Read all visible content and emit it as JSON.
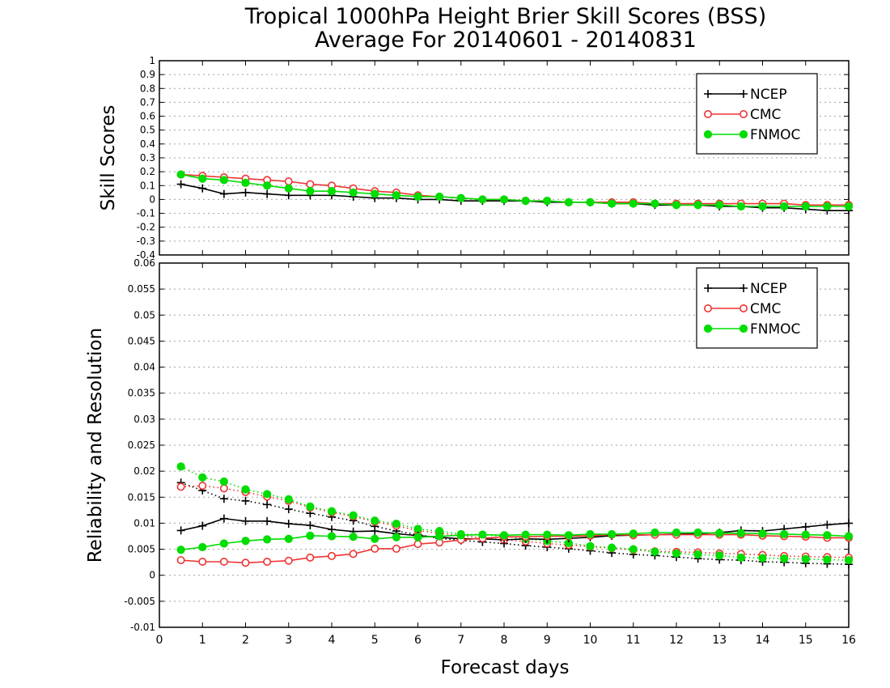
{
  "title_line1": "Tropical 1000hPa Height Brier Skill Scores (BSS)",
  "title_line2": "Average For 20140601 - 20140831",
  "xlabel": "Forecast days",
  "colors": {
    "NCEP": "#000000",
    "CMC": "#ee3333",
    "FNMOC": "#00dd00"
  },
  "chart_data": [
    {
      "type": "line",
      "ylabel": "Skill Scores",
      "xlim": [
        0,
        16
      ],
      "ylim": [
        -0.4,
        1
      ],
      "xticks": [
        "0",
        "1",
        "2",
        "3",
        "4",
        "5",
        "6",
        "7",
        "8",
        "9",
        "10",
        "11",
        "12",
        "13",
        "14",
        "15",
        "16"
      ],
      "yticks": [
        "-0.4",
        "-0.3",
        "-0.2",
        "-0.1",
        "0",
        "0.1",
        "0.2",
        "0.3",
        "0.4",
        "0.5",
        "0.6",
        "0.7",
        "0.8",
        "0.9",
        "1"
      ],
      "legend": [
        "NCEP",
        "CMC",
        "FNMOC"
      ],
      "legend_position": "top-right",
      "grid": true,
      "x": [
        0.5,
        1,
        1.5,
        2,
        2.5,
        3,
        3.5,
        4,
        4.5,
        5,
        5.5,
        6,
        6.5,
        7,
        7.5,
        8,
        8.5,
        9,
        9.5,
        10,
        10.5,
        11,
        11.5,
        12,
        12.5,
        13,
        13.5,
        14,
        14.5,
        15,
        15.5,
        16
      ],
      "series": [
        {
          "name": "NCEP",
          "marker": "plus",
          "style": "solid",
          "values": [
            0.11,
            0.08,
            0.04,
            0.05,
            0.04,
            0.03,
            0.03,
            0.03,
            0.02,
            0.01,
            0.01,
            0.0,
            0.0,
            -0.01,
            -0.01,
            -0.01,
            -0.01,
            -0.02,
            -0.02,
            -0.02,
            -0.03,
            -0.03,
            -0.04,
            -0.04,
            -0.04,
            -0.05,
            -0.05,
            -0.06,
            -0.06,
            -0.07,
            -0.08,
            -0.08
          ]
        },
        {
          "name": "CMC",
          "marker": "open-circle",
          "style": "solid",
          "values": [
            0.18,
            0.17,
            0.16,
            0.15,
            0.14,
            0.13,
            0.11,
            0.1,
            0.08,
            0.06,
            0.05,
            0.03,
            0.02,
            0.01,
            0.0,
            0.0,
            -0.01,
            -0.01,
            -0.02,
            -0.02,
            -0.02,
            -0.02,
            -0.03,
            -0.03,
            -0.03,
            -0.03,
            -0.03,
            -0.03,
            -0.03,
            -0.04,
            -0.04,
            -0.04
          ]
        },
        {
          "name": "FNMOC",
          "marker": "filled-circle",
          "style": "solid",
          "values": [
            0.18,
            0.15,
            0.14,
            0.12,
            0.1,
            0.08,
            0.06,
            0.06,
            0.05,
            0.04,
            0.03,
            0.02,
            0.02,
            0.01,
            0.0,
            0.0,
            -0.01,
            -0.01,
            -0.02,
            -0.02,
            -0.03,
            -0.03,
            -0.03,
            -0.04,
            -0.04,
            -0.04,
            -0.05,
            -0.05,
            -0.05,
            -0.05,
            -0.05,
            -0.05
          ]
        }
      ]
    },
    {
      "type": "line",
      "ylabel": "Reliability and Resolution",
      "xlabel": "Forecast days",
      "xlim": [
        0,
        16
      ],
      "ylim": [
        -0.01,
        0.06
      ],
      "xticks": [
        "0",
        "1",
        "2",
        "3",
        "4",
        "5",
        "6",
        "7",
        "8",
        "9",
        "10",
        "11",
        "12",
        "13",
        "14",
        "15",
        "16"
      ],
      "yticks": [
        "-0.01",
        "-0.005",
        "0",
        "0.005",
        "0.01",
        "0.015",
        "0.02",
        "0.025",
        "0.03",
        "0.035",
        "0.04",
        "0.045",
        "0.05",
        "0.055",
        "0.06"
      ],
      "legend": [
        "NCEP",
        "CMC",
        "FNMOC"
      ],
      "legend_position": "top-right",
      "grid": true,
      "x": [
        0.5,
        1,
        1.5,
        2,
        2.5,
        3,
        3.5,
        4,
        4.5,
        5,
        5.5,
        6,
        6.5,
        7,
        7.5,
        8,
        8.5,
        9,
        9.5,
        10,
        10.5,
        11,
        11.5,
        12,
        12.5,
        13,
        13.5,
        14,
        14.5,
        15,
        15.5,
        16
      ],
      "series": [
        {
          "name": "NCEP",
          "marker": "plus",
          "style": "solid",
          "values": [
            0.0086,
            0.0095,
            0.0109,
            0.0104,
            0.0104,
            0.0099,
            0.0096,
            0.0088,
            0.0084,
            0.0085,
            0.008,
            0.0076,
            0.0073,
            0.007,
            0.007,
            0.0068,
            0.007,
            0.0069,
            0.0071,
            0.0073,
            0.0076,
            0.0077,
            0.0078,
            0.0079,
            0.008,
            0.0082,
            0.0086,
            0.0085,
            0.0089,
            0.0093,
            0.0097,
            0.01
          ]
        },
        {
          "name": "CMC",
          "marker": "open-circle",
          "style": "solid",
          "values": [
            0.0029,
            0.0026,
            0.0026,
            0.0024,
            0.0026,
            0.0028,
            0.0034,
            0.0037,
            0.0041,
            0.0051,
            0.0051,
            0.006,
            0.0063,
            0.0068,
            0.0071,
            0.0074,
            0.0074,
            0.0075,
            0.0075,
            0.0076,
            0.0078,
            0.0077,
            0.0078,
            0.0078,
            0.0078,
            0.0078,
            0.0078,
            0.0076,
            0.0075,
            0.0074,
            0.0072,
            0.0072
          ]
        },
        {
          "name": "FNMOC",
          "marker": "filled-circle",
          "style": "solid",
          "values": [
            0.0049,
            0.0054,
            0.0061,
            0.0066,
            0.0069,
            0.007,
            0.0076,
            0.0075,
            0.0074,
            0.007,
            0.0073,
            0.0073,
            0.0075,
            0.0077,
            0.0078,
            0.0077,
            0.0078,
            0.0078,
            0.0077,
            0.0079,
            0.0079,
            0.008,
            0.0082,
            0.0082,
            0.0082,
            0.0081,
            0.0081,
            0.008,
            0.0079,
            0.0078,
            0.0077,
            0.0075
          ]
        },
        {
          "name": "NCEP",
          "marker": "plus",
          "style": "dotted",
          "values": [
            0.0178,
            0.0163,
            0.0147,
            0.0143,
            0.0136,
            0.0127,
            0.0119,
            0.0112,
            0.0105,
            0.0094,
            0.0085,
            0.0078,
            0.0071,
            0.0067,
            0.0064,
            0.0061,
            0.0057,
            0.0054,
            0.0051,
            0.0047,
            0.0043,
            0.004,
            0.0038,
            0.0035,
            0.0032,
            0.003,
            0.0029,
            0.0026,
            0.0025,
            0.0023,
            0.0022,
            0.0021
          ]
        },
        {
          "name": "CMC",
          "marker": "open-circle",
          "style": "dotted",
          "values": [
            0.017,
            0.0172,
            0.0167,
            0.016,
            0.0151,
            0.0143,
            0.013,
            0.0121,
            0.0113,
            0.0103,
            0.0095,
            0.0086,
            0.0081,
            0.0076,
            0.0072,
            0.0068,
            0.0065,
            0.0061,
            0.0058,
            0.0055,
            0.0052,
            0.0049,
            0.0046,
            0.0045,
            0.0044,
            0.0042,
            0.0041,
            0.0039,
            0.0037,
            0.0036,
            0.0035,
            0.0034
          ]
        },
        {
          "name": "FNMOC",
          "marker": "filled-circle",
          "style": "dotted",
          "values": [
            0.0209,
            0.0188,
            0.018,
            0.0165,
            0.0156,
            0.0146,
            0.0132,
            0.0123,
            0.0115,
            0.0105,
            0.0099,
            0.0089,
            0.0085,
            0.0079,
            0.0078,
            0.0075,
            0.007,
            0.0066,
            0.0062,
            0.0056,
            0.0053,
            0.005,
            0.0045,
            0.0042,
            0.004,
            0.0038,
            0.0034,
            0.0033,
            0.0032,
            0.0031,
            0.003,
            0.0029
          ]
        }
      ]
    }
  ]
}
